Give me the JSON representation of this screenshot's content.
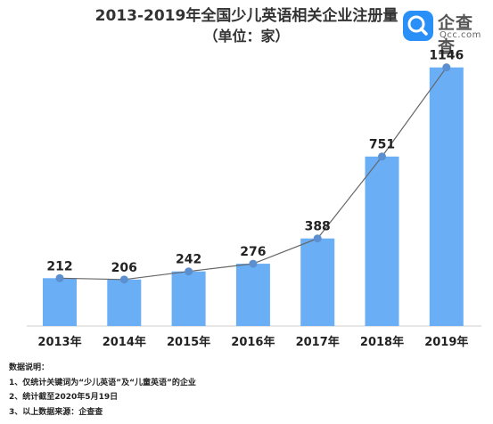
{
  "title": "2013-2019年全国少儿英语相关企业注册量",
  "subtitle": "（单位：家）",
  "logo": {
    "name": "企查查",
    "url": "Qcc.com",
    "icon": "qcc-magnifier-icon",
    "color": "#2a8ff7"
  },
  "colors": {
    "bar": "#6aaef5",
    "line": "#666666",
    "marker": "#5b8fcf"
  },
  "chart_data": {
    "type": "bar",
    "overlay": "line",
    "categories": [
      "2013年",
      "2014年",
      "2015年",
      "2016年",
      "2017年",
      "2018年",
      "2019年"
    ],
    "values": [
      212,
      206,
      242,
      276,
      388,
      751,
      1146
    ],
    "labels": [
      "212",
      "206",
      "242",
      "276",
      "388",
      "751",
      "1146"
    ],
    "ylim": [
      0,
      1200
    ],
    "grid": false
  },
  "notes": {
    "heading": "数据说明：",
    "items": [
      "1、仅统计关键词为“少儿英语”及“儿童英语”的企业",
      "2、统计截至2020年5月19日",
      "3、以上数据来源：企查查"
    ]
  }
}
